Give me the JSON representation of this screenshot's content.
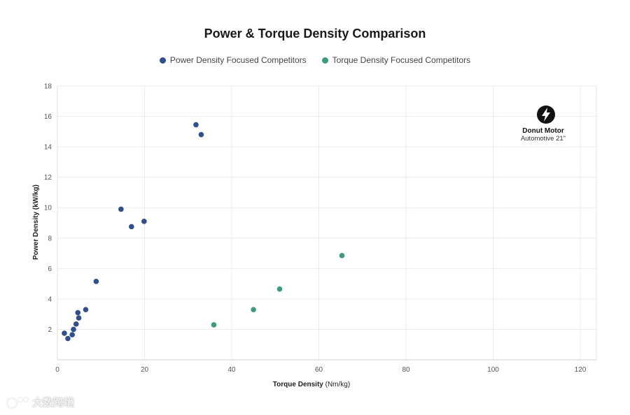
{
  "chart_data": {
    "type": "scatter",
    "title": "Power & Torque Density Comparison",
    "xlabel": "Torque Density",
    "xlabel_unit": "(Nm/kg)",
    "ylabel": "Power Density (kW/kg)",
    "xlim": [
      0,
      125
    ],
    "ylim": [
      0,
      18
    ],
    "xticks": [
      0,
      20,
      40,
      60,
      80,
      100,
      120
    ],
    "yticks": [
      2,
      4,
      6,
      8,
      10,
      12,
      14,
      16,
      18
    ],
    "grid": true,
    "legend_position": "top-center",
    "series": [
      {
        "name": "Power Density Focused Competitors",
        "color": "#2f4f8f",
        "points": [
          {
            "x": 1.6,
            "y": 1.75
          },
          {
            "x": 2.4,
            "y": 1.4
          },
          {
            "x": 3.4,
            "y": 1.65
          },
          {
            "x": 3.7,
            "y": 2.0
          },
          {
            "x": 4.3,
            "y": 2.35
          },
          {
            "x": 4.7,
            "y": 3.1
          },
          {
            "x": 4.9,
            "y": 2.75
          },
          {
            "x": 6.5,
            "y": 3.3
          },
          {
            "x": 8.9,
            "y": 5.15
          },
          {
            "x": 14.6,
            "y": 9.9
          },
          {
            "x": 17.0,
            "y": 8.75
          },
          {
            "x": 19.9,
            "y": 9.1
          },
          {
            "x": 31.8,
            "y": 15.45
          },
          {
            "x": 33.0,
            "y": 14.8
          }
        ]
      },
      {
        "name": "Torque Density Focused Competitors",
        "color": "#3a9c7a",
        "points": [
          {
            "x": 35.9,
            "y": 2.3
          },
          {
            "x": 45.0,
            "y": 3.3
          },
          {
            "x": 51.0,
            "y": 4.65
          },
          {
            "x": 65.3,
            "y": 6.85
          }
        ]
      }
    ],
    "annotation": {
      "name": "Donut Motor",
      "subtitle": "Automotive 21\"",
      "icon": "lightning-bolt-icon"
    }
  },
  "watermark": {
    "text": "大数跨境",
    "icon": "logo-icon"
  }
}
